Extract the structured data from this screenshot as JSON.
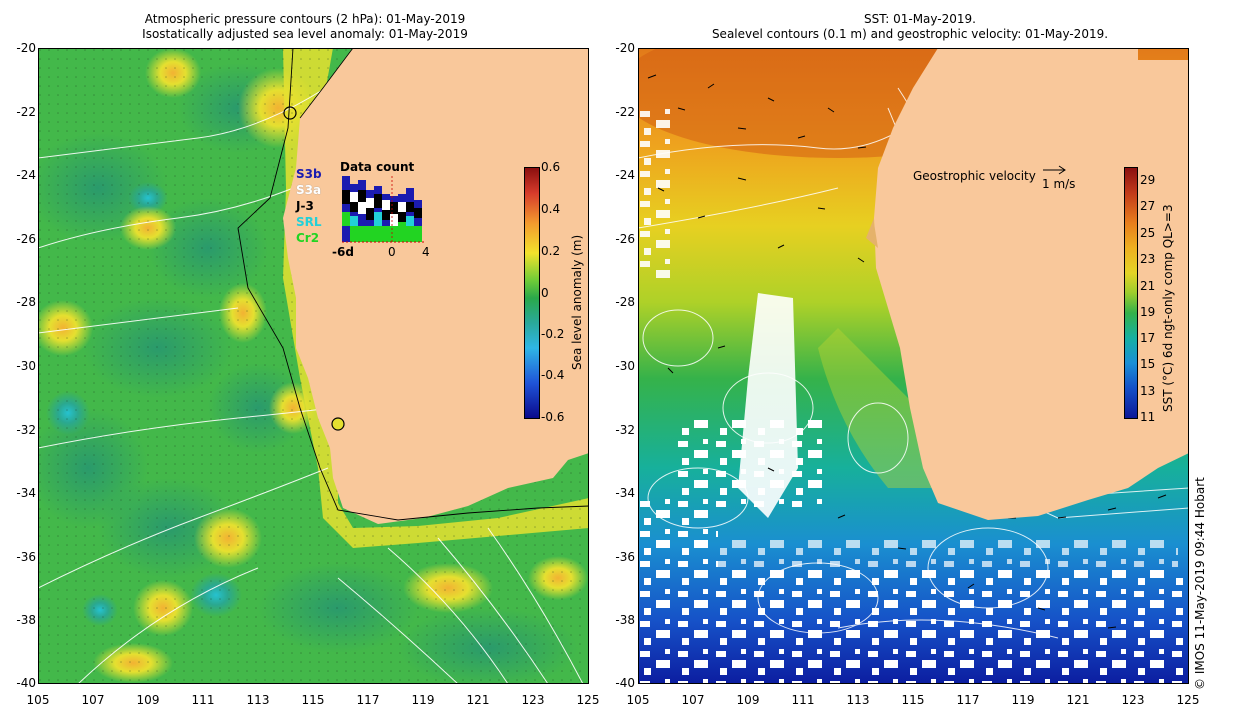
{
  "left_panel": {
    "title_line1": "Atmospheric pressure contours (2 hPa): 01-May-2019",
    "title_line2": "Isostatically adjusted sea level anomaly: 01-May-2019",
    "y_ticks": [
      "-20",
      "-22",
      "-24",
      "-26",
      "-28",
      "-30",
      "-32",
      "-34",
      "-36",
      "-38",
      "-40"
    ],
    "x_ticks": [
      "105",
      "107",
      "109",
      "111",
      "113",
      "115",
      "117",
      "119",
      "121",
      "123",
      "125"
    ],
    "colorbar": {
      "label": "Sea level anomaly (m)",
      "ticks": [
        "0.6",
        "0.4",
        "0.2",
        "0",
        "-0.2",
        "-0.4",
        "-0.6"
      ],
      "range": [
        -0.6,
        0.6
      ]
    },
    "satellite_legend": [
      {
        "name": "S3b",
        "color": "#1b1bb0"
      },
      {
        "name": "S3a",
        "color": "#ffffff"
      },
      {
        "name": "J-3",
        "color": "#000000"
      },
      {
        "name": "SRL",
        "color": "#22d0d8"
      },
      {
        "name": "Cr2",
        "color": "#22d422"
      }
    ],
    "data_count": {
      "title": "Data count",
      "x_ticks": [
        "-6d",
        "0",
        "4"
      ]
    },
    "colors": {
      "land": "#f9c89b",
      "ocean": "#3fb84a"
    }
  },
  "right_panel": {
    "title_line1": "SST: 01-May-2019.",
    "title_line2": "Sealevel contours (0.1 m) and geostrophic velocity: 01-May-2019.",
    "y_ticks": [
      "-20",
      "-22",
      "-24",
      "-26",
      "-28",
      "-30",
      "-32",
      "-34",
      "-36",
      "-38",
      "-40"
    ],
    "x_ticks": [
      "105",
      "107",
      "109",
      "111",
      "113",
      "115",
      "117",
      "119",
      "121",
      "123",
      "125"
    ],
    "velocity_legend": {
      "label": "Geostrophic velocity",
      "scale": "1 m/s"
    },
    "colorbar": {
      "label": "SST (°C) 6d ngt-only comp QL>=3",
      "ticks": [
        "29",
        "27",
        "25",
        "23",
        "21",
        "19",
        "17",
        "15",
        "13",
        "11"
      ],
      "range": [
        11,
        30
      ]
    }
  },
  "credit": "© IMOS 11-May-2019 09:44 Hobart"
}
